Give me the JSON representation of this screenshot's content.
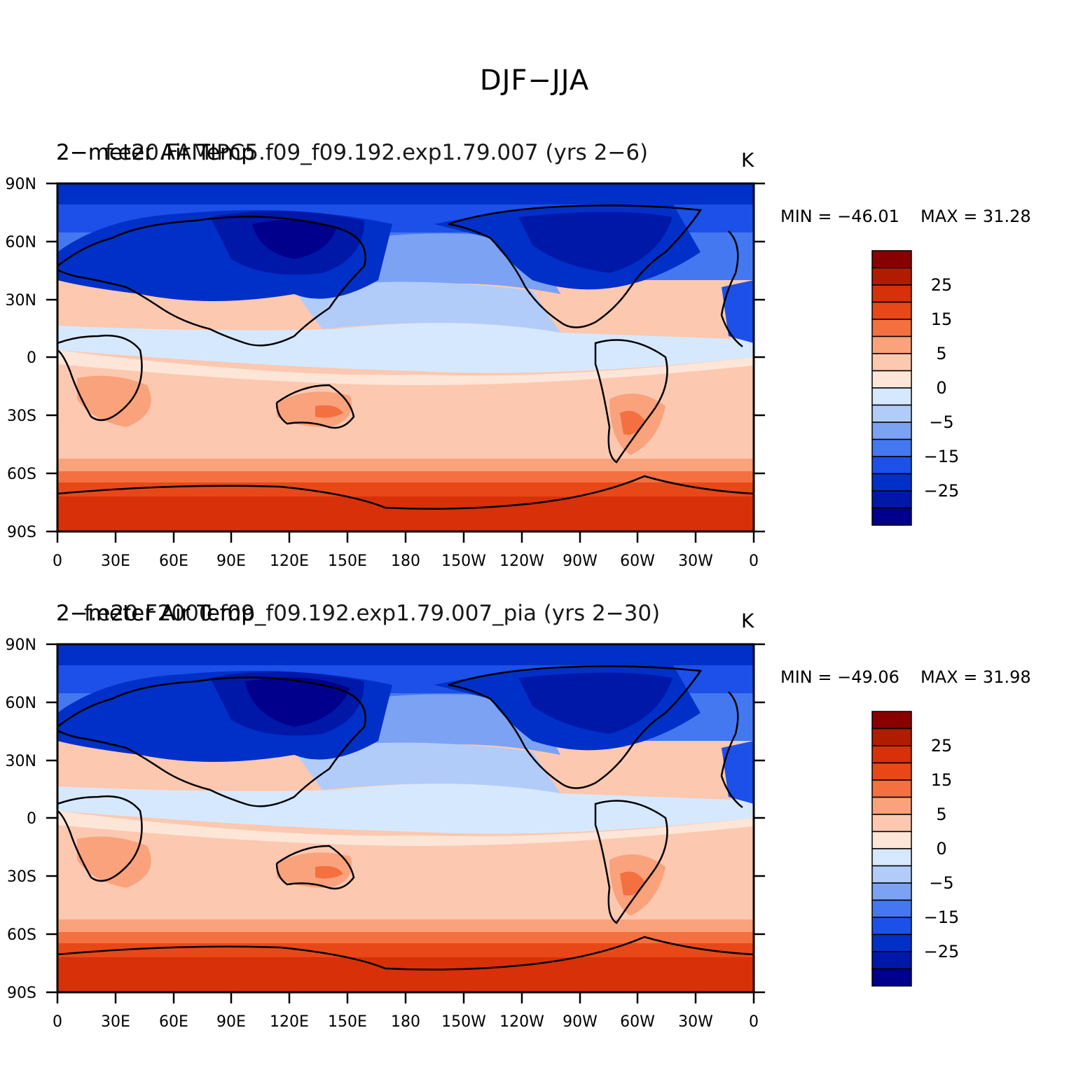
{
  "figure": {
    "title": "DJF−JJA"
  },
  "colors": {
    "levels": [
      "#00008c",
      "#0018a8",
      "#0030c8",
      "#1c50e8",
      "#4478f0",
      "#7ca2f4",
      "#b2ccfa",
      "#d6e8fe",
      "#fde6d8",
      "#fcc8b0",
      "#f9a27c",
      "#f47040",
      "#e84818",
      "#d83008",
      "#b01c00",
      "#880000"
    ]
  },
  "colorbar": {
    "labels": [
      "25",
      "15",
      "5",
      "0",
      "−5",
      "−15",
      "−25"
    ]
  },
  "axes": {
    "lat_labels": [
      "90N",
      "60N",
      "30N",
      "0",
      "30S",
      "60S",
      "90S"
    ],
    "lon_labels": [
      "0",
      "30E",
      "60E",
      "90E",
      "120E",
      "150E",
      "180",
      "150W",
      "120W",
      "90W",
      "60W",
      "30W",
      "0"
    ]
  },
  "panels": [
    {
      "name": "top",
      "title_left": "2−meter Air Temp",
      "title_center": "f.e20.FAMIPC5.f09_f09.192.exp1.79.007 (yrs 2−6)",
      "units": "K",
      "min_label": "MIN = −46.01",
      "max_label": "MAX =  31.28"
    },
    {
      "name": "bottom",
      "title_left": "2−meter Air Temp",
      "title_center": "f.e20.F2000.f09_f09.192.exp1.79.007_pia (yrs 2−30)",
      "units": "K",
      "min_label": "MIN = −49.06",
      "max_label": "MAX =  31.98"
    }
  ]
}
